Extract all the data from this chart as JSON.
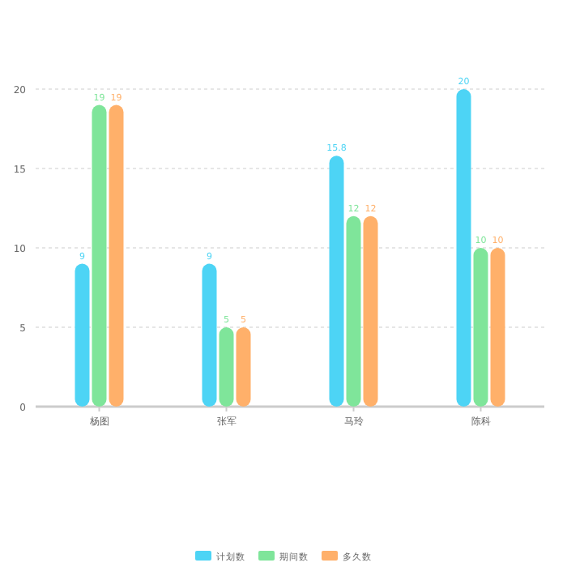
{
  "chart_data": {
    "type": "bar",
    "categories": [
      "杨图",
      "张军",
      "马玲",
      "陈科"
    ],
    "series": [
      {
        "name": "计划数",
        "color": "#4dd4f5",
        "values": [
          9,
          9,
          15.8,
          20
        ]
      },
      {
        "name": "期间数",
        "color": "#7fe59a",
        "values": [
          19,
          5,
          12,
          10
        ]
      },
      {
        "name": "多久数",
        "color": "#ffb06a",
        "values": [
          19,
          5,
          12,
          10
        ]
      }
    ],
    "ylim": [
      0,
      20
    ],
    "yticks": [
      0,
      5,
      10,
      15,
      20
    ],
    "grid": "y",
    "legend": "bottom",
    "data_labels": true
  }
}
